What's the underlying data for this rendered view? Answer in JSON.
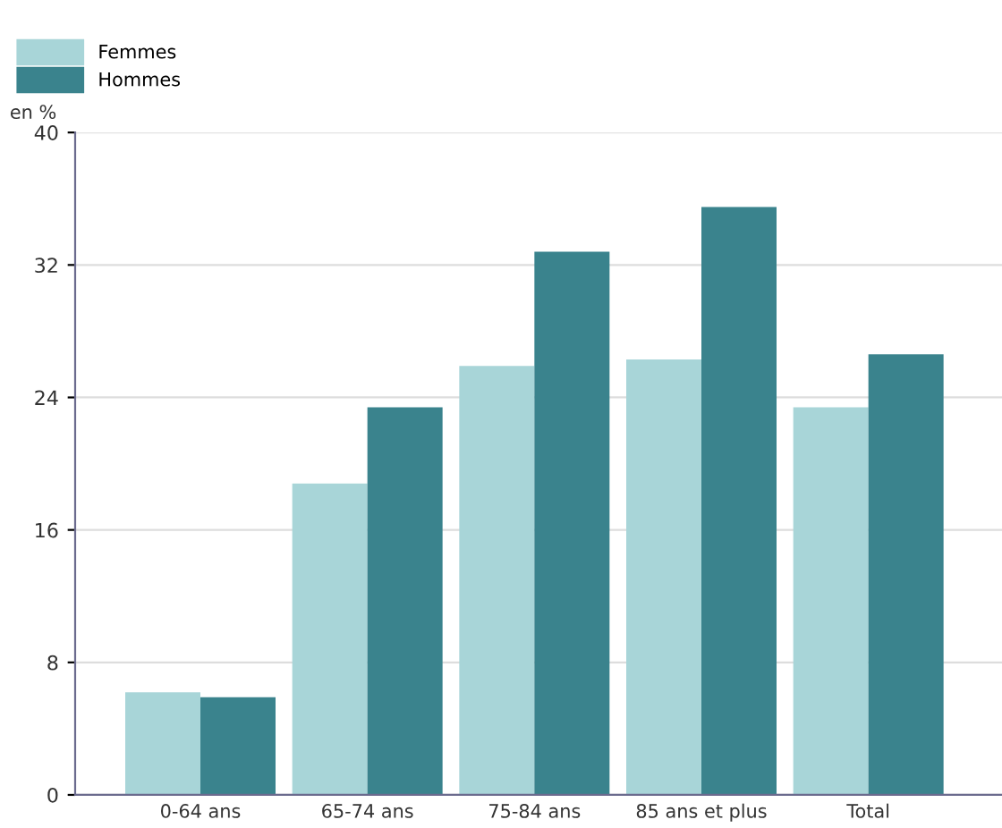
{
  "chart_data": {
    "type": "bar",
    "ylabel": "en %",
    "categories": [
      "0-64 ans",
      "65-74 ans",
      "75-84 ans",
      "85 ans et plus",
      "Total"
    ],
    "series": [
      {
        "name": "Femmes",
        "color": "#a8d5d8",
        "values": [
          6.2,
          18.8,
          25.9,
          26.3,
          23.4
        ]
      },
      {
        "name": "Hommes",
        "color": "#3a838d",
        "values": [
          5.9,
          23.4,
          32.8,
          35.5,
          26.6
        ]
      }
    ],
    "ylim": [
      0,
      40
    ],
    "yticks": [
      0,
      8,
      16,
      24,
      32,
      40
    ],
    "grid": "y",
    "legend": "top left"
  }
}
